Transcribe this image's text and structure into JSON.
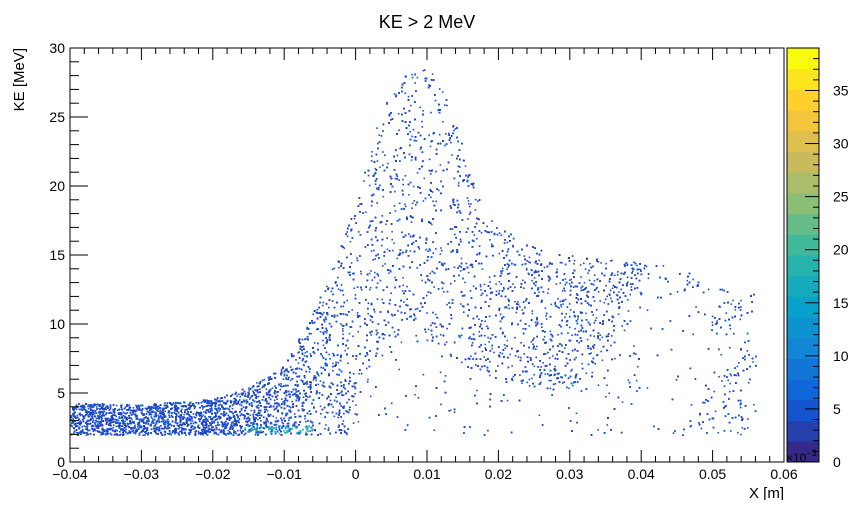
{
  "chart_data": {
    "type": "heatmap",
    "title": "KE > 2 MeV",
    "xlabel": "X [m]",
    "ylabel": "KE [MeV]",
    "xlim": [
      -0.04,
      0.06
    ],
    "ylim": [
      0,
      30
    ],
    "x_ticks": [
      {
        "value": -0.04,
        "label": "−0.04"
      },
      {
        "value": -0.03,
        "label": "−0.03"
      },
      {
        "value": -0.02,
        "label": "−0.02"
      },
      {
        "value": -0.01,
        "label": "−0.01"
      },
      {
        "value": 0,
        "label": "0"
      },
      {
        "value": 0.01,
        "label": "0.01"
      },
      {
        "value": 0.02,
        "label": "0.02"
      },
      {
        "value": 0.03,
        "label": "0.03"
      },
      {
        "value": 0.04,
        "label": "0.04"
      },
      {
        "value": 0.05,
        "label": "0.05"
      },
      {
        "value": 0.06,
        "label": "0.06"
      }
    ],
    "y_ticks": [
      0,
      5,
      10,
      15,
      20,
      25,
      30
    ],
    "colorbar": {
      "min": 0,
      "max": 39,
      "ticks": [
        0,
        5,
        10,
        15,
        20,
        25,
        30,
        35
      ],
      "multiplier_label": "×10",
      "multiplier_exponent": "−3",
      "colors": [
        "#352a87",
        "#0f5cdd",
        "#1481d6",
        "#06a4ca",
        "#2eb7a4",
        "#87bf77",
        "#d1bb59",
        "#fec832",
        "#f9fb0e"
      ]
    },
    "regions": {
      "upper_envelope": [
        [
          -0.04,
          4.3
        ],
        [
          -0.03,
          4.2
        ],
        [
          -0.02,
          4.6
        ],
        [
          -0.015,
          5.5
        ],
        [
          -0.01,
          7
        ],
        [
          -0.008,
          9
        ],
        [
          -0.005,
          12
        ],
        [
          -0.002,
          16
        ],
        [
          0,
          19
        ],
        [
          0.002,
          23
        ],
        [
          0.004,
          26
        ],
        [
          0.007,
          28.3
        ],
        [
          0.01,
          28.6
        ],
        [
          0.012,
          27.5
        ],
        [
          0.014,
          24.5
        ],
        [
          0.016,
          21
        ],
        [
          0.018,
          18
        ],
        [
          0.022,
          16.5
        ],
        [
          0.026,
          15.5
        ],
        [
          0.03,
          15
        ],
        [
          0.035,
          14.8
        ],
        [
          0.04,
          14.5
        ],
        [
          0.045,
          14.2
        ],
        [
          0.048,
          13.5
        ],
        [
          0.052,
          12.5
        ],
        [
          0.056,
          12.8
        ]
      ],
      "lower_bound": 2.0,
      "hole_envelope": [
        [
          0.0,
          2.0
        ],
        [
          0.001,
          5.0
        ],
        [
          0.003,
          8.0
        ],
        [
          0.006,
          9.6
        ],
        [
          0.009,
          9.0
        ],
        [
          0.012,
          7.6
        ],
        [
          0.018,
          6.5
        ],
        [
          0.024,
          5.6
        ],
        [
          0.028,
          5.0
        ],
        [
          0.031,
          5.3
        ],
        [
          0.034,
          7.0
        ],
        [
          0.038,
          12.0
        ],
        [
          0.042,
          13.5
        ],
        [
          0.046,
          12.0
        ],
        [
          0.05,
          9.0
        ],
        [
          0.054,
          8.0
        ],
        [
          0.048,
          4.0
        ],
        [
          0.044,
          2.0
        ]
      ],
      "dense_core_x": [
        0.0,
        0.035
      ],
      "hot_spot": {
        "x": -0.01,
        "y": 2.4,
        "count_e3": 28
      }
    }
  }
}
